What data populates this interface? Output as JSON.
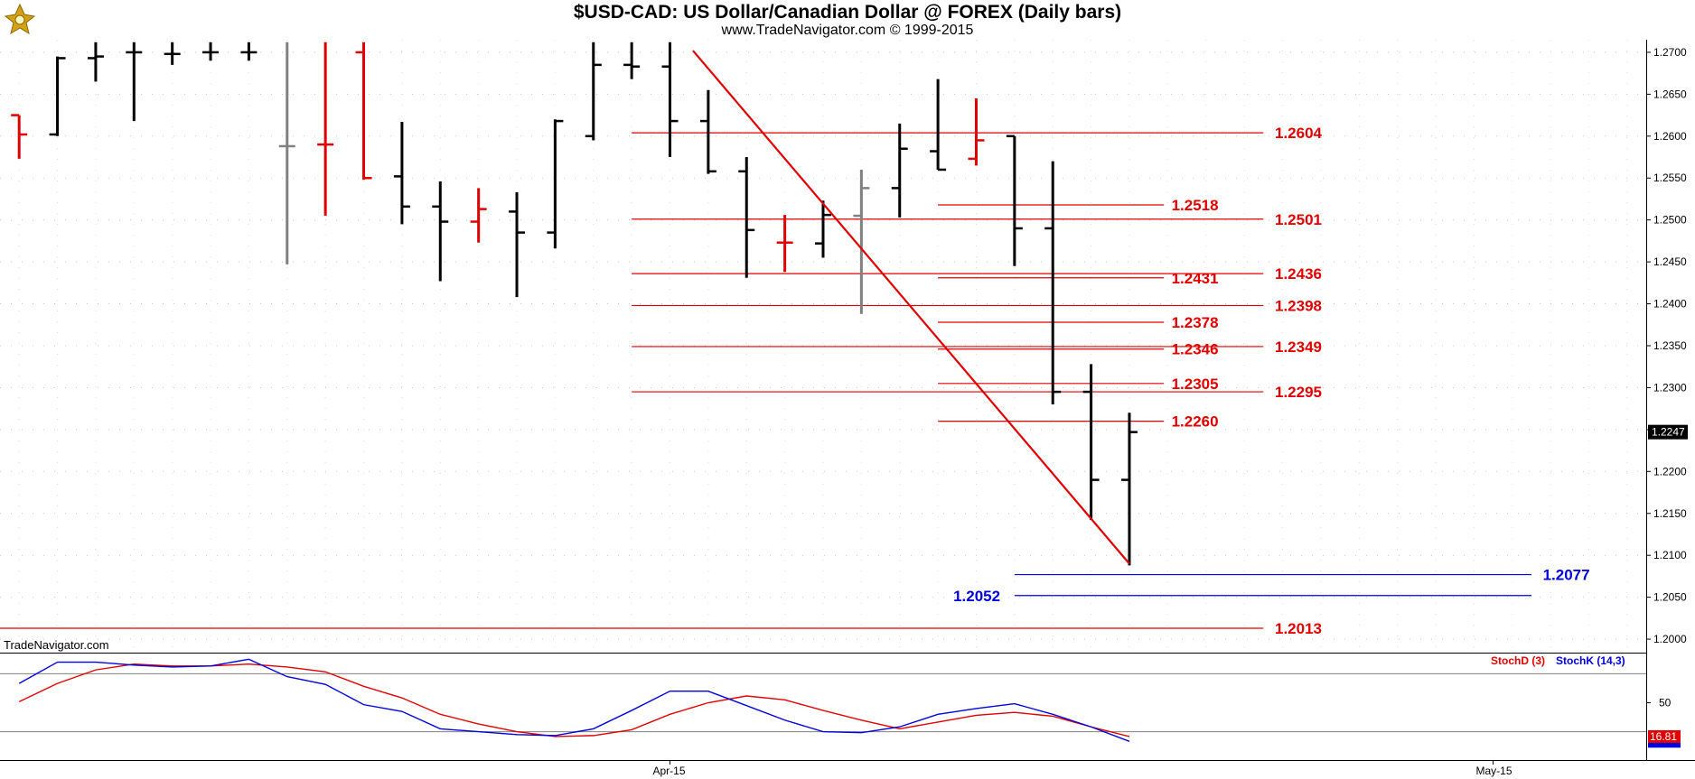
{
  "header": {
    "title": "$USD-CAD:  US Dollar/Canadian Dollar @ FOREX  (Daily bars)",
    "subtitle": "www.TradeNavigator.com © 1999-2015"
  },
  "watermark": "TradeNavigator.com",
  "colors": {
    "up": "#000000",
    "down": "#e00000",
    "neutral": "#808080",
    "trend": "#e00000",
    "level_red": "#e00000",
    "level_blue": "#0000dd",
    "stochD": "#e00000",
    "stochK": "#0000dd"
  },
  "chart_data": [
    {
      "type": "ohlc",
      "ylim": [
        1.1985,
        1.2715
      ],
      "xlim": [
        -0.5,
        42.5
      ],
      "yticks": [
        "1.2000",
        "1.2050",
        "1.2100",
        "1.2150",
        "1.2200",
        "1.2250",
        "1.2300",
        "1.2350",
        "1.2400",
        "1.2450",
        "1.2500",
        "1.2550",
        "1.2600",
        "1.2650",
        "1.2700"
      ],
      "xtick_labels": [
        {
          "x": 17,
          "label": "Apr-15"
        },
        {
          "x": 38.5,
          "label": "May-15"
        }
      ],
      "last_price": "1.2247",
      "bars": [
        {
          "o": 1.2625,
          "h": 1.2625,
          "l": 1.2573,
          "c": 1.2602,
          "col": "down"
        },
        {
          "o": 1.2602,
          "h": 1.2695,
          "l": 1.26,
          "c": 1.2693,
          "col": "up"
        },
        {
          "o": 1.2693,
          "h": 1.2712,
          "l": 1.2665,
          "c": 1.2695,
          "col": "up"
        },
        {
          "o": 1.27,
          "h": 1.2712,
          "l": 1.2618,
          "c": 1.27,
          "col": "up"
        },
        {
          "o": 1.2698,
          "h": 1.2712,
          "l": 1.2685,
          "c": 1.2698,
          "col": "up"
        },
        {
          "o": 1.27,
          "h": 1.2712,
          "l": 1.269,
          "c": 1.27,
          "col": "up"
        },
        {
          "o": 1.27,
          "h": 1.2712,
          "l": 1.269,
          "c": 1.27,
          "col": "up"
        },
        {
          "o": 1.2588,
          "h": 1.2712,
          "l": 1.2447,
          "c": 1.2588,
          "col": "neutral"
        },
        {
          "o": 1.259,
          "h": 1.2712,
          "l": 1.2505,
          "c": 1.259,
          "col": "down"
        },
        {
          "o": 1.27,
          "h": 1.2712,
          "l": 1.2548,
          "c": 1.255,
          "col": "down"
        },
        {
          "o": 1.2552,
          "h": 1.2617,
          "l": 1.2495,
          "c": 1.2516,
          "col": "up"
        },
        {
          "o": 1.2516,
          "h": 1.2546,
          "l": 1.2427,
          "c": 1.2498,
          "col": "up"
        },
        {
          "o": 1.2498,
          "h": 1.2538,
          "l": 1.2473,
          "c": 1.2513,
          "col": "down"
        },
        {
          "o": 1.251,
          "h": 1.2533,
          "l": 1.2408,
          "c": 1.2485,
          "col": "up"
        },
        {
          "o": 1.2485,
          "h": 1.262,
          "l": 1.2466,
          "c": 1.2618,
          "col": "up"
        },
        {
          "o": 1.26,
          "h": 1.2712,
          "l": 1.2595,
          "c": 1.2685,
          "col": "up"
        },
        {
          "o": 1.2685,
          "h": 1.2712,
          "l": 1.2668,
          "c": 1.2683,
          "col": "up"
        },
        {
          "o": 1.2683,
          "h": 1.2712,
          "l": 1.2575,
          "c": 1.2618,
          "col": "up"
        },
        {
          "o": 1.2618,
          "h": 1.2655,
          "l": 1.2555,
          "c": 1.2558,
          "col": "up"
        },
        {
          "o": 1.2558,
          "h": 1.2575,
          "l": 1.2431,
          "c": 1.2488,
          "col": "up"
        },
        {
          "o": 1.2473,
          "h": 1.2506,
          "l": 1.2438,
          "c": 1.2473,
          "col": "down"
        },
        {
          "o": 1.2472,
          "h": 1.2523,
          "l": 1.2455,
          "c": 1.2506,
          "col": "up"
        },
        {
          "o": 1.2505,
          "h": 1.256,
          "l": 1.2388,
          "c": 1.2538,
          "col": "neutral"
        },
        {
          "o": 1.2538,
          "h": 1.2615,
          "l": 1.2503,
          "c": 1.2585,
          "col": "up"
        },
        {
          "o": 1.2582,
          "h": 1.2668,
          "l": 1.256,
          "c": 1.256,
          "col": "up"
        },
        {
          "o": 1.2573,
          "h": 1.2645,
          "l": 1.2565,
          "c": 1.2595,
          "col": "down"
        },
        {
          "o": 1.26,
          "h": 1.26,
          "l": 1.2445,
          "c": 1.249,
          "col": "up"
        },
        {
          "o": 1.249,
          "h": 1.257,
          "l": 1.228,
          "c": 1.2295,
          "col": "up"
        },
        {
          "o": 1.2295,
          "h": 1.2328,
          "l": 1.2142,
          "c": 1.219,
          "col": "up"
        },
        {
          "o": 1.219,
          "h": 1.227,
          "l": 1.2088,
          "c": 1.2247,
          "col": "up"
        }
      ],
      "trendline": {
        "x1": 17.6,
        "y1": 1.2702,
        "x2": 29.0,
        "y2": 1.209
      },
      "levels": [
        {
          "value": 1.2604,
          "label": "1.2604",
          "x1": 16.0,
          "x2": 32.5,
          "label_x": 32.8,
          "color": "red"
        },
        {
          "value": 1.2518,
          "label": "1.2518",
          "x1": 24.0,
          "x2": 29.9,
          "label_x": 30.1,
          "color": "red"
        },
        {
          "value": 1.2501,
          "label": "1.2501",
          "x1": 16.0,
          "x2": 32.5,
          "label_x": 32.8,
          "color": "red"
        },
        {
          "value": 1.2436,
          "label": "1.2436",
          "x1": 16.0,
          "x2": 32.5,
          "label_x": 32.8,
          "color": "red"
        },
        {
          "value": 1.2431,
          "label": "1.2431",
          "x1": 24.0,
          "x2": 29.9,
          "label_x": 30.1,
          "color": "red"
        },
        {
          "value": 1.2398,
          "label": "1.2398",
          "x1": 16.0,
          "x2": 32.5,
          "label_x": 32.8,
          "color": "red"
        },
        {
          "value": 1.2378,
          "label": "1.2378",
          "x1": 24.0,
          "x2": 29.9,
          "label_x": 30.1,
          "color": "red"
        },
        {
          "value": 1.2349,
          "label": "1.2349",
          "x1": 16.0,
          "x2": 32.5,
          "label_x": 32.8,
          "color": "red"
        },
        {
          "value": 1.2346,
          "label": "1.2346",
          "x1": 24.0,
          "x2": 29.9,
          "label_x": 30.1,
          "color": "red"
        },
        {
          "value": 1.2305,
          "label": "1.2305",
          "x1": 24.0,
          "x2": 29.9,
          "label_x": 30.1,
          "color": "red"
        },
        {
          "value": 1.2295,
          "label": "1.2295",
          "x1": 16.0,
          "x2": 32.5,
          "label_x": 32.8,
          "color": "red"
        },
        {
          "value": 1.226,
          "label": "1.2260",
          "x1": 24.0,
          "x2": 29.9,
          "label_x": 30.1,
          "color": "red"
        },
        {
          "value": 1.2077,
          "label": "1.2077",
          "x1": 26.0,
          "x2": 39.5,
          "label_x": 39.8,
          "color": "blue"
        },
        {
          "value": 1.2052,
          "label": "1.2052",
          "x1": 26.0,
          "x2": 39.5,
          "label_x": 24.4,
          "color": "blue"
        },
        {
          "value": 1.2013,
          "label": "1.2013",
          "x1": -0.5,
          "x2": 32.5,
          "label_x": 32.8,
          "color": "red"
        }
      ]
    },
    {
      "type": "line",
      "ylim": [
        0,
        100
      ],
      "ytick_labels": [
        "50"
      ],
      "reference_lines": [
        20,
        80
      ],
      "last_value": "16.81",
      "legend": [
        "StochD (3)",
        "StochK (14,3)"
      ],
      "series": [
        {
          "name": "StochD (3)",
          "color": "red",
          "x": [
            0,
            1,
            2,
            3,
            4,
            5,
            6,
            7,
            8,
            9,
            10,
            11,
            12,
            13,
            14,
            15,
            16,
            17,
            18,
            19,
            20,
            21,
            22,
            23,
            24,
            25,
            26,
            27,
            28,
            29
          ],
          "values": [
            51,
            70,
            84,
            90,
            88,
            88,
            90,
            87,
            82,
            67,
            55,
            38,
            28,
            20,
            15,
            16,
            22,
            38,
            50,
            57,
            53,
            42,
            32,
            23,
            30,
            37,
            40,
            36,
            25,
            15
          ]
        },
        {
          "name": "StochK (14,3)",
          "color": "blue",
          "x": [
            0,
            1,
            2,
            3,
            4,
            5,
            6,
            7,
            8,
            9,
            10,
            11,
            12,
            13,
            14,
            15,
            16,
            17,
            18,
            19,
            20,
            21,
            22,
            23,
            24,
            25,
            26,
            27,
            28,
            29
          ],
          "values": [
            70,
            92,
            92,
            89,
            87,
            88,
            95,
            77,
            69,
            48,
            41,
            23,
            20,
            17,
            16,
            23,
            42,
            62,
            62,
            47,
            32,
            20,
            19,
            25,
            38,
            44,
            49,
            38,
            25,
            10
          ]
        }
      ]
    }
  ]
}
